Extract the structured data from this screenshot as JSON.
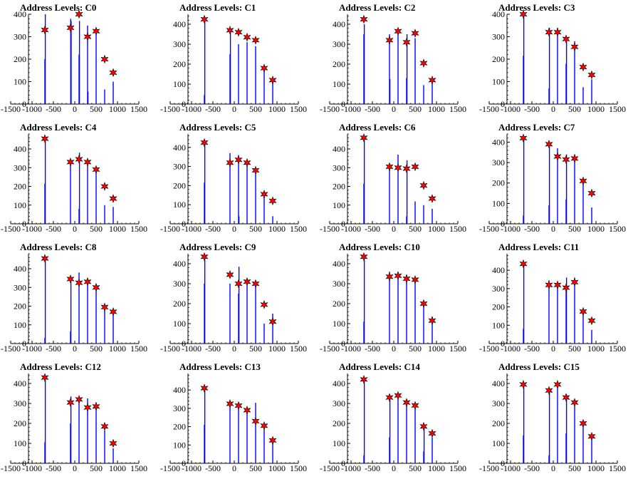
{
  "chart_data": [
    {
      "type": "bar",
      "title": "Address Levels: C0",
      "xlim": [
        -1500,
        1500
      ],
      "ylim": [
        0,
        400
      ],
      "xticks": [
        "-1500",
        "-1000",
        "-500",
        "0",
        "500",
        "1000",
        "1500"
      ],
      "yticks": [
        "0",
        "100",
        "200",
        "300",
        "400"
      ],
      "peak_positions": [
        -700,
        -100,
        100,
        300,
        500,
        700,
        900
      ],
      "peaks": [
        330,
        340,
        400,
        300,
        325,
        200,
        140
      ],
      "bars": [
        {
          "x": -700,
          "y": 200
        },
        {
          "x": -690,
          "y": 400
        },
        {
          "x": -95,
          "y": 380
        },
        {
          "x": -85,
          "y": 370
        },
        {
          "x": 100,
          "y": 220
        },
        {
          "x": 110,
          "y": 370
        },
        {
          "x": 300,
          "y": 350
        },
        {
          "x": 310,
          "y": 55
        },
        {
          "x": 500,
          "y": 330
        },
        {
          "x": 700,
          "y": 65
        },
        {
          "x": 900,
          "y": 100
        }
      ]
    },
    {
      "type": "bar",
      "title": "Address Levels: C1",
      "xlim": [
        -1500,
        1500
      ],
      "ylim": [
        0,
        450
      ],
      "xticks": [
        "-1500",
        "-1000",
        "-500",
        "0",
        "500",
        "1000",
        "1500"
      ],
      "yticks": [
        "0",
        "100",
        "200",
        "300",
        "400"
      ],
      "peak_positions": [
        -700,
        -100,
        100,
        300,
        500,
        700,
        900
      ],
      "peaks": [
        425,
        370,
        360,
        335,
        320,
        180,
        120
      ],
      "bars": [
        {
          "x": -700,
          "y": 45
        },
        {
          "x": -690,
          "y": 425
        },
        {
          "x": -100,
          "y": 250
        },
        {
          "x": -90,
          "y": 370
        },
        {
          "x": 100,
          "y": 300
        },
        {
          "x": 300,
          "y": 310
        },
        {
          "x": 500,
          "y": 290
        },
        {
          "x": 700,
          "y": 175
        },
        {
          "x": 900,
          "y": 110
        }
      ]
    },
    {
      "type": "bar",
      "title": "Address Levels: C2",
      "xlim": [
        -1500,
        1500
      ],
      "ylim": [
        0,
        450
      ],
      "xticks": [
        "-1500",
        "-1000",
        "-500",
        "0",
        "500",
        "1000",
        "1500"
      ],
      "yticks": [
        "0",
        "100",
        "200",
        "300",
        "400"
      ],
      "peak_positions": [
        -700,
        -100,
        100,
        300,
        500,
        700,
        900
      ],
      "peaks": [
        425,
        320,
        365,
        310,
        355,
        205,
        120
      ],
      "bars": [
        {
          "x": -700,
          "y": 350
        },
        {
          "x": -690,
          "y": 400
        },
        {
          "x": -100,
          "y": 350
        },
        {
          "x": -90,
          "y": 125
        },
        {
          "x": 100,
          "y": 365
        },
        {
          "x": 300,
          "y": 130
        },
        {
          "x": 310,
          "y": 350
        },
        {
          "x": 500,
          "y": 330
        },
        {
          "x": 700,
          "y": 95
        },
        {
          "x": 900,
          "y": 120
        }
      ]
    },
    {
      "type": "bar",
      "title": "Address Levels: C3",
      "xlim": [
        -1500,
        1500
      ],
      "ylim": [
        0,
        400
      ],
      "xticks": [
        "-1500",
        "-1000",
        "-500",
        "0",
        "500",
        "1000",
        "1500"
      ],
      "yticks": [
        "0",
        "100",
        "200",
        "300",
        "400"
      ],
      "peak_positions": [
        -700,
        -100,
        100,
        300,
        500,
        700,
        900
      ],
      "peaks": [
        400,
        320,
        320,
        290,
        255,
        165,
        130
      ],
      "bars": [
        {
          "x": -700,
          "y": 215
        },
        {
          "x": -690,
          "y": 400
        },
        {
          "x": -100,
          "y": 70
        },
        {
          "x": -90,
          "y": 340
        },
        {
          "x": 100,
          "y": 340
        },
        {
          "x": 300,
          "y": 180
        },
        {
          "x": 310,
          "y": 290
        },
        {
          "x": 500,
          "y": 280
        },
        {
          "x": 700,
          "y": 75
        },
        {
          "x": 900,
          "y": 110
        }
      ]
    },
    {
      "type": "bar",
      "title": "Address Levels: C4",
      "xlim": [
        -1500,
        1500
      ],
      "ylim": [
        0,
        480
      ],
      "xticks": [
        "-1500",
        "-1000",
        "-500",
        "0",
        "500",
        "1000",
        "1500"
      ],
      "yticks": [
        "0",
        "100",
        "200",
        "300",
        "400"
      ],
      "peak_positions": [
        -700,
        -100,
        100,
        300,
        500,
        700,
        900
      ],
      "peaks": [
        455,
        330,
        345,
        330,
        290,
        200,
        135
      ],
      "bars": [
        {
          "x": -700,
          "y": 215
        },
        {
          "x": -690,
          "y": 455
        },
        {
          "x": -100,
          "y": 330
        },
        {
          "x": 100,
          "y": 80
        },
        {
          "x": 110,
          "y": 380
        },
        {
          "x": 300,
          "y": 340
        },
        {
          "x": 500,
          "y": 300
        },
        {
          "x": 700,
          "y": 100
        },
        {
          "x": 900,
          "y": 90
        }
      ]
    },
    {
      "type": "bar",
      "title": "Address Levels: C5",
      "xlim": [
        -1500,
        1500
      ],
      "ylim": [
        0,
        470
      ],
      "xticks": [
        "-1500",
        "-1000",
        "-500",
        "0",
        "500",
        "1000",
        "1500"
      ],
      "yticks": [
        "0",
        "100",
        "200",
        "300",
        "400"
      ],
      "peak_positions": [
        -700,
        -100,
        100,
        300,
        500,
        700,
        900
      ],
      "peaks": [
        425,
        320,
        335,
        320,
        280,
        155,
        120
      ],
      "bars": [
        {
          "x": -700,
          "y": 215
        },
        {
          "x": -690,
          "y": 425
        },
        {
          "x": -100,
          "y": 370
        },
        {
          "x": 100,
          "y": 360
        },
        {
          "x": 110,
          "y": 40
        },
        {
          "x": 300,
          "y": 320
        },
        {
          "x": 500,
          "y": 280
        },
        {
          "x": 700,
          "y": 170
        },
        {
          "x": 900,
          "y": 40
        }
      ]
    },
    {
      "type": "bar",
      "title": "Address Levels: C6",
      "xlim": [
        -1500,
        1500
      ],
      "ylim": [
        0,
        480
      ],
      "xticks": [
        "-1500",
        "-1000",
        "-500",
        "0",
        "500",
        "1000",
        "1500"
      ],
      "yticks": [
        "0",
        "100",
        "200",
        "300",
        "400"
      ],
      "peak_positions": [
        -700,
        -100,
        100,
        300,
        500,
        700,
        900
      ],
      "peaks": [
        460,
        305,
        300,
        295,
        305,
        205,
        135
      ],
      "bars": [
        {
          "x": -700,
          "y": 215
        },
        {
          "x": -690,
          "y": 460
        },
        {
          "x": -100,
          "y": 305
        },
        {
          "x": 100,
          "y": 370
        },
        {
          "x": 300,
          "y": 40
        },
        {
          "x": 310,
          "y": 340
        },
        {
          "x": 500,
          "y": 120
        },
        {
          "x": 700,
          "y": 100
        },
        {
          "x": 900,
          "y": 80
        }
      ]
    },
    {
      "type": "bar",
      "title": "Address Levels: C7",
      "xlim": [
        -1500,
        1500
      ],
      "ylim": [
        0,
        440
      ],
      "xticks": [
        "-1500",
        "-1000",
        "-500",
        "0",
        "500",
        "1000",
        "1500"
      ],
      "yticks": [
        "0",
        "100",
        "200",
        "300",
        "400"
      ],
      "peak_positions": [
        -700,
        -100,
        100,
        300,
        500,
        700,
        900
      ],
      "peaks": [
        420,
        390,
        330,
        315,
        320,
        210,
        150
      ],
      "bars": [
        {
          "x": -700,
          "y": 40
        },
        {
          "x": -690,
          "y": 420
        },
        {
          "x": -100,
          "y": 90
        },
        {
          "x": -90,
          "y": 390
        },
        {
          "x": 100,
          "y": 370
        },
        {
          "x": 300,
          "y": 120
        },
        {
          "x": 310,
          "y": 340
        },
        {
          "x": 500,
          "y": 340
        },
        {
          "x": 700,
          "y": 210
        },
        {
          "x": 900,
          "y": 80
        }
      ]
    },
    {
      "type": "bar",
      "title": "Address Levels: C8",
      "xlim": [
        -1500,
        1500
      ],
      "ylim": [
        0,
        480
      ],
      "xticks": [
        "-1500",
        "-1000",
        "-500",
        "0",
        "500",
        "1000",
        "1500"
      ],
      "yticks": [
        "0",
        "100",
        "200",
        "300",
        "400"
      ],
      "peak_positions": [
        -700,
        -100,
        100,
        300,
        500,
        700,
        900
      ],
      "peaks": [
        455,
        345,
        325,
        330,
        300,
        195,
        170
      ],
      "bars": [
        {
          "x": -700,
          "y": 30
        },
        {
          "x": -690,
          "y": 455
        },
        {
          "x": -100,
          "y": 65
        },
        {
          "x": -90,
          "y": 345
        },
        {
          "x": 100,
          "y": 380
        },
        {
          "x": 300,
          "y": 350
        },
        {
          "x": 500,
          "y": 320
        },
        {
          "x": 700,
          "y": 190
        },
        {
          "x": 900,
          "y": 165
        }
      ]
    },
    {
      "type": "bar",
      "title": "Address Levels: C9",
      "xlim": [
        -1500,
        1500
      ],
      "ylim": [
        0,
        450
      ],
      "xticks": [
        "-1500",
        "-1000",
        "-500",
        "0",
        "500",
        "1000",
        "1500"
      ],
      "yticks": [
        "0",
        "100",
        "200",
        "300",
        "400"
      ],
      "peak_positions": [
        -700,
        -100,
        100,
        300,
        500,
        700,
        900
      ],
      "peaks": [
        435,
        345,
        300,
        310,
        300,
        195,
        110
      ],
      "bars": [
        {
          "x": -700,
          "y": 300
        },
        {
          "x": -690,
          "y": 435
        },
        {
          "x": -100,
          "y": 300
        },
        {
          "x": 100,
          "y": 250
        },
        {
          "x": 110,
          "y": 385
        },
        {
          "x": 300,
          "y": 320
        },
        {
          "x": 500,
          "y": 300
        },
        {
          "x": 700,
          "y": 100
        },
        {
          "x": 900,
          "y": 150
        }
      ]
    },
    {
      "type": "bar",
      "title": "Address Levels: C10",
      "xlim": [
        -1500,
        1500
      ],
      "ylim": [
        0,
        450
      ],
      "xticks": [
        "-1500",
        "-1000",
        "-500",
        "0",
        "500",
        "1000",
        "1500"
      ],
      "yticks": [
        "0",
        "100",
        "200",
        "300",
        "400"
      ],
      "peak_positions": [
        -700,
        -100,
        100,
        300,
        500,
        700,
        900
      ],
      "peaks": [
        435,
        335,
        340,
        325,
        320,
        200,
        115
      ],
      "bars": [
        {
          "x": -700,
          "y": 110
        },
        {
          "x": -690,
          "y": 435
        },
        {
          "x": -100,
          "y": 360
        },
        {
          "x": 100,
          "y": 360
        },
        {
          "x": 300,
          "y": 345
        },
        {
          "x": 500,
          "y": 320
        },
        {
          "x": 700,
          "y": 195
        },
        {
          "x": 900,
          "y": 135
        }
      ]
    },
    {
      "type": "bar",
      "title": "Address Levels: C11",
      "xlim": [
        -1500,
        1500
      ],
      "ylim": [
        0,
        490
      ],
      "xticks": [
        "-1500",
        "-1000",
        "-500",
        "0",
        "500",
        "1000",
        "1500"
      ],
      "yticks": [
        "0",
        "100",
        "200",
        "300",
        "400"
      ],
      "peak_positions": [
        -700,
        -100,
        100,
        300,
        500,
        700,
        900
      ],
      "peaks": [
        435,
        320,
        320,
        305,
        335,
        175,
        125
      ],
      "bars": [
        {
          "x": -700,
          "y": 80
        },
        {
          "x": -690,
          "y": 435
        },
        {
          "x": -100,
          "y": 345
        },
        {
          "x": 100,
          "y": 310
        },
        {
          "x": 300,
          "y": 320
        },
        {
          "x": 310,
          "y": 360
        },
        {
          "x": 500,
          "y": 360
        },
        {
          "x": 700,
          "y": 180
        },
        {
          "x": 900,
          "y": 75
        }
      ]
    },
    {
      "type": "bar",
      "title": "Address Levels: C12",
      "xlim": [
        -1500,
        1500
      ],
      "ylim": [
        0,
        450
      ],
      "xticks": [
        "-1500",
        "-1000",
        "-500",
        "0",
        "500",
        "1000",
        "1500"
      ],
      "yticks": [
        "0",
        "100",
        "200",
        "300",
        "400"
      ],
      "peak_positions": [
        -700,
        -100,
        100,
        300,
        500,
        700,
        900
      ],
      "peaks": [
        430,
        305,
        320,
        280,
        285,
        185,
        100
      ],
      "bars": [
        {
          "x": -700,
          "y": 105
        },
        {
          "x": -690,
          "y": 430
        },
        {
          "x": -100,
          "y": 200
        },
        {
          "x": -90,
          "y": 335
        },
        {
          "x": 100,
          "y": 330
        },
        {
          "x": 300,
          "y": 325
        },
        {
          "x": 500,
          "y": 305
        },
        {
          "x": 700,
          "y": 165
        },
        {
          "x": 900,
          "y": 75
        }
      ]
    },
    {
      "type": "bar",
      "title": "Address Levels: C13",
      "xlim": [
        -1500,
        1500
      ],
      "ylim": [
        0,
        490
      ],
      "xticks": [
        "-1500",
        "-1000",
        "-500",
        "0",
        "500",
        "1000",
        "1500"
      ],
      "yticks": [
        "0",
        "100",
        "200",
        "300",
        "400"
      ],
      "peak_positions": [
        -700,
        -100,
        100,
        300,
        500,
        700,
        900
      ],
      "peaks": [
        410,
        325,
        315,
        290,
        230,
        205,
        125
      ],
      "bars": [
        {
          "x": -700,
          "y": 210
        },
        {
          "x": -690,
          "y": 410
        },
        {
          "x": -100,
          "y": 325
        },
        {
          "x": 100,
          "y": 325
        },
        {
          "x": 300,
          "y": 300
        },
        {
          "x": 500,
          "y": 330
        },
        {
          "x": 700,
          "y": 205
        },
        {
          "x": 900,
          "y": 120
        }
      ]
    },
    {
      "type": "bar",
      "title": "Address Levels: C14",
      "xlim": [
        -1500,
        1500
      ],
      "ylim": [
        0,
        450
      ],
      "xticks": [
        "-1500",
        "-1000",
        "-500",
        "0",
        "500",
        "1000",
        "1500"
      ],
      "yticks": [
        "0",
        "100",
        "200",
        "300",
        "400"
      ],
      "peak_positions": [
        -700,
        -100,
        100,
        300,
        500,
        700,
        900
      ],
      "peaks": [
        420,
        330,
        340,
        305,
        290,
        185,
        150
      ],
      "bars": [
        {
          "x": -700,
          "y": 40
        },
        {
          "x": -690,
          "y": 420
        },
        {
          "x": -100,
          "y": 130
        },
        {
          "x": -90,
          "y": 330
        },
        {
          "x": 100,
          "y": 350
        },
        {
          "x": 300,
          "y": 310
        },
        {
          "x": 500,
          "y": 300
        },
        {
          "x": 700,
          "y": 60
        },
        {
          "x": 710,
          "y": 185
        },
        {
          "x": 900,
          "y": 130
        }
      ]
    },
    {
      "type": "bar",
      "title": "Address Levels: C15",
      "xlim": [
        -1500,
        1500
      ],
      "ylim": [
        0,
        450
      ],
      "xticks": [
        "-1500",
        "-1000",
        "-500",
        "0",
        "500",
        "1000",
        "1500"
      ],
      "yticks": [
        "0",
        "100",
        "200",
        "300",
        "400"
      ],
      "peak_positions": [
        -700,
        -100,
        100,
        300,
        500,
        700,
        900
      ],
      "peaks": [
        395,
        365,
        395,
        330,
        305,
        200,
        135
      ],
      "bars": [
        {
          "x": -700,
          "y": 140
        },
        {
          "x": -690,
          "y": 395
        },
        {
          "x": -100,
          "y": 40
        },
        {
          "x": -90,
          "y": 365
        },
        {
          "x": 100,
          "y": 395
        },
        {
          "x": 300,
          "y": 150
        },
        {
          "x": 310,
          "y": 345
        },
        {
          "x": 500,
          "y": 305
        },
        {
          "x": 700,
          "y": 200
        },
        {
          "x": 900,
          "y": 120
        }
      ]
    }
  ]
}
